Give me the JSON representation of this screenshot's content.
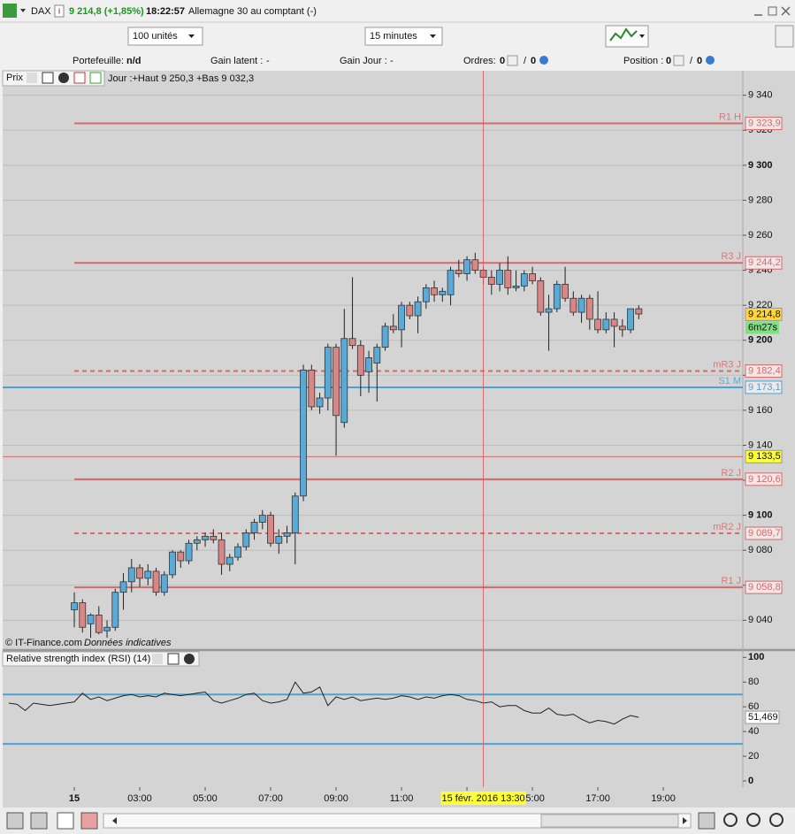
{
  "header": {
    "instrument": "DAX",
    "price_change": "9 214,8 (+1,85%)",
    "time": "18:22:57",
    "description": "Allemagne 30 au comptant (-)"
  },
  "toolbar": {
    "quantity": "100 unités",
    "interval": "15 minutes"
  },
  "status": {
    "portfolio_label": "Portefeuille:",
    "portfolio_value": "n/d",
    "latent_label": "Gain latent :",
    "latent_value": "-",
    "day_gain_label": "Gain Jour :",
    "day_gain_value": "-",
    "orders_label": "Ordres:",
    "orders_pending": "0",
    "orders_sep": "/",
    "orders_active": "0",
    "position_label": "Position :",
    "position_long": "0",
    "position_sep": "/",
    "position_short": "0"
  },
  "price_chart": {
    "type": "candlestick",
    "panel_label": "Prix",
    "summary": "Jour :+Haut 9 250,3 +Bas 9 032,3",
    "x": [
      1,
      1.25,
      1.5,
      1.75,
      2,
      2.25,
      2.5,
      2.75,
      3,
      3.25,
      3.5,
      3.75,
      4,
      4.25,
      4.5,
      4.75,
      5,
      5.25,
      5.5,
      5.75,
      6,
      6.25,
      6.5,
      6.75,
      7,
      7.25,
      7.5,
      7.75,
      8,
      8.25,
      8.5,
      8.75,
      9,
      9.25,
      9.5,
      9.75,
      10,
      10.25,
      10.5,
      10.75,
      11,
      11.25,
      11.5,
      11.75,
      12,
      12.25,
      12.5,
      12.75,
      13,
      13.25,
      13.5,
      13.75,
      14,
      14.25,
      14.5,
      14.75,
      15,
      15.25,
      15.5,
      15.75,
      16,
      16.25,
      16.5,
      16.75,
      17,
      17.25,
      17.5,
      17.75,
      18,
      18.25
    ],
    "open": [
      9046,
      9050,
      9038,
      9043,
      9034,
      9036,
      9056,
      9062,
      9070,
      9064,
      9068,
      9056,
      9066,
      9079,
      9074,
      9084,
      9086,
      9088,
      9086,
      9072,
      9076,
      9082,
      9090,
      9096,
      9100,
      9084,
      9088,
      9090,
      9111,
      9183,
      9162,
      9167,
      9196,
      9153,
      9201,
      9197,
      9182,
      9187,
      9196,
      9208,
      9206,
      9220,
      9214,
      9222,
      9230,
      9226,
      9226,
      9240,
      9238,
      9246,
      9240,
      9236,
      9232,
      9240,
      9230,
      9231,
      9238,
      9234,
      9216,
      9218,
      9232,
      9224,
      9216,
      9224,
      9212,
      9206,
      9212,
      9208,
      9206,
      9218
    ],
    "high": [
      9056,
      9052,
      9044,
      9048,
      9040,
      9058,
      9067,
      9075,
      9072,
      9072,
      9070,
      9068,
      9080,
      9080,
      9086,
      9088,
      9090,
      9092,
      9090,
      9078,
      9084,
      9092,
      9098,
      9103,
      9102,
      9092,
      9094,
      9113,
      9186,
      9186,
      9170,
      9198,
      9198,
      9218,
      9236,
      9200,
      9194,
      9198,
      9210,
      9215,
      9222,
      9222,
      9225,
      9232,
      9234,
      9230,
      9242,
      9246,
      9248,
      9250,
      9242,
      9240,
      9244,
      9248,
      9240,
      9240,
      9242,
      9236,
      9226,
      9234,
      9242,
      9228,
      9226,
      9226,
      9228,
      9216,
      9216,
      9212,
      9218,
      9220
    ],
    "low": [
      9036,
      9033,
      9030,
      9032,
      9030,
      9034,
      9046,
      9056,
      9059,
      9060,
      9054,
      9054,
      9064,
      9070,
      9072,
      9080,
      9082,
      9084,
      9066,
      9068,
      9074,
      9080,
      9086,
      9092,
      9082,
      9078,
      9084,
      9072,
      9108,
      9160,
      9158,
      9160,
      9134,
      9150,
      9195,
      9168,
      9170,
      9165,
      9194,
      9204,
      9196,
      9212,
      9204,
      9218,
      9222,
      9222,
      9220,
      9236,
      9234,
      9238,
      9232,
      9226,
      9228,
      9226,
      9228,
      9228,
      9232,
      9214,
      9194,
      9216,
      9222,
      9214,
      9210,
      9206,
      9204,
      9204,
      9196,
      9202,
      9204,
      9212
    ],
    "close": [
      9050,
      9036,
      9043,
      9033,
      9036,
      9056,
      9062,
      9070,
      9064,
      9068,
      9056,
      9066,
      9079,
      9074,
      9084,
      9086,
      9088,
      9086,
      9072,
      9076,
      9082,
      9090,
      9096,
      9100,
      9084,
      9088,
      9090,
      9111,
      9183,
      9162,
      9167,
      9196,
      9157,
      9201,
      9197,
      9180,
      9190,
      9196,
      9208,
      9206,
      9220,
      9214,
      9222,
      9230,
      9226,
      9228,
      9240,
      9238,
      9246,
      9240,
      9236,
      9232,
      9240,
      9230,
      9231,
      9238,
      9234,
      9216,
      9218,
      9232,
      9224,
      9216,
      9224,
      9212,
      9206,
      9212,
      9208,
      9206,
      9218,
      9215
    ],
    "up_color": "#5aaad8",
    "down_color": "#d88686",
    "ylim": [
      9024,
      9354
    ],
    "yticks": [
      {
        "value": 9340,
        "label": "9 340"
      },
      {
        "value": 9320,
        "label": "9 320"
      },
      {
        "value": 9300,
        "label": "9 300"
      },
      {
        "value": 9280,
        "label": "9 280"
      },
      {
        "value": 9260,
        "label": "9 260"
      },
      {
        "value": 9240,
        "label": "9 240"
      },
      {
        "value": 9220,
        "label": "9 220"
      },
      {
        "value": 9200,
        "label": "9 200"
      },
      {
        "value": 9180,
        "label": "9 180"
      },
      {
        "value": 9160,
        "label": "9 160"
      },
      {
        "value": 9140,
        "label": "9 140"
      },
      {
        "value": 9120,
        "label": "9 120"
      },
      {
        "value": 9100,
        "label": "9 100"
      },
      {
        "value": 9080,
        "label": "9 080"
      },
      {
        "value": 9060,
        "label": "9 060"
      },
      {
        "value": 9040,
        "label": "9 040"
      }
    ],
    "xlim": [
      -1.19,
      21.43
    ],
    "xticks": [
      {
        "value": 1,
        "label": "15"
      },
      {
        "value": 3,
        "label": "03:00"
      },
      {
        "value": 5,
        "label": "05:00"
      },
      {
        "value": 7,
        "label": "07:00"
      },
      {
        "value": 9,
        "label": "09:00"
      },
      {
        "value": 11,
        "label": "11:00"
      },
      {
        "value": 13,
        "label": "13:00"
      },
      {
        "value": 15,
        "label": "15:00"
      },
      {
        "value": 17,
        "label": "17:00"
      },
      {
        "value": 19,
        "label": "19:00"
      }
    ],
    "grid": true,
    "levels": [
      {
        "name": "R1 H",
        "value": 9323.9,
        "value_label": "9 323,9",
        "color": "#d46a6a",
        "style": "solid",
        "extent": "day"
      },
      {
        "name": "R3 J",
        "value": 9244.2,
        "value_label": "9 244,2",
        "color": "#d46a6a",
        "style": "solid",
        "extent": "day"
      },
      {
        "name": "mR3 J",
        "value": 9182.4,
        "value_label": "9 182,4",
        "color": "#d46a6a",
        "style": "dashed",
        "extent": "day"
      },
      {
        "name": "S1 M",
        "value": 9173.1,
        "value_label": "9 173,1",
        "color": "#4aa3d8",
        "style": "solid",
        "extent": "full"
      },
      {
        "value": 9133.5,
        "value_label": "9 133,5",
        "color": "#d46a6a",
        "style": "thin",
        "extent": "full",
        "highlight": "#ffff33"
      },
      {
        "name": "R2 J",
        "value": 9120.6,
        "value_label": "9 120,6",
        "color": "#d46a6a",
        "style": "solid",
        "extent": "day"
      },
      {
        "name": "mR2 J",
        "value": 9089.7,
        "value_label": "9 089,7",
        "color": "#d46a6a",
        "style": "dashed",
        "extent": "day"
      },
      {
        "name": "R1 J",
        "value": 9058.8,
        "value_label": "9 058,8",
        "color": "#d46a6a",
        "style": "solid",
        "extent": "day"
      }
    ],
    "last_price": 9214.8,
    "last_price_label": "9 214,8",
    "countdown": "6m27s",
    "cursor": {
      "x": 13.5,
      "label": "15 févr. 2016 13:30"
    },
    "copyright": "© IT-Finance.com",
    "disclaimer": "Données indicatives"
  },
  "rsi_chart": {
    "type": "line",
    "title": "Relative strength index (RSI) (14)",
    "x": [
      -1,
      -0.75,
      -0.5,
      -0.25,
      0,
      0.25,
      0.5,
      0.75,
      1,
      1.25,
      1.5,
      1.75,
      2,
      2.25,
      2.5,
      2.75,
      3,
      3.25,
      3.5,
      3.75,
      4,
      4.25,
      4.5,
      4.75,
      5,
      5.25,
      5.5,
      5.75,
      6,
      6.25,
      6.5,
      6.75,
      7,
      7.25,
      7.5,
      7.75,
      8,
      8.25,
      8.5,
      8.75,
      9,
      9.25,
      9.5,
      9.75,
      10,
      10.25,
      10.5,
      10.75,
      11,
      11.25,
      11.5,
      11.75,
      12,
      12.25,
      12.5,
      12.75,
      13,
      13.25,
      13.5,
      13.75,
      14,
      14.25,
      14.5,
      14.75,
      15,
      15.25,
      15.5,
      15.75,
      16,
      16.25,
      16.5,
      16.75,
      17,
      17.25,
      17.5,
      17.75,
      18,
      18.25
    ],
    "values": [
      63,
      62,
      57,
      63,
      62,
      61,
      62,
      63,
      64,
      71,
      66,
      68,
      65,
      67,
      69,
      70,
      68,
      69,
      68,
      71,
      70,
      69,
      70,
      71,
      72,
      65,
      63,
      65,
      67,
      70,
      71,
      65,
      63,
      64,
      66,
      80,
      71,
      72,
      76,
      61,
      68,
      66,
      68,
      65,
      66,
      67,
      66,
      67,
      69,
      68,
      66,
      68,
      67,
      69,
      70,
      69,
      66,
      65,
      63,
      64,
      60,
      61,
      61,
      57,
      55,
      55,
      59,
      54,
      53,
      54,
      50,
      47,
      49,
      48,
      46,
      50,
      53,
      51.469
    ],
    "color": "#222222",
    "ylim": [
      -5,
      104.5
    ],
    "yticks": [
      100,
      80,
      60,
      40,
      20,
      0
    ],
    "bands": [
      70,
      30
    ],
    "band_color": "#4aa3d8",
    "last_label": "51,469"
  }
}
